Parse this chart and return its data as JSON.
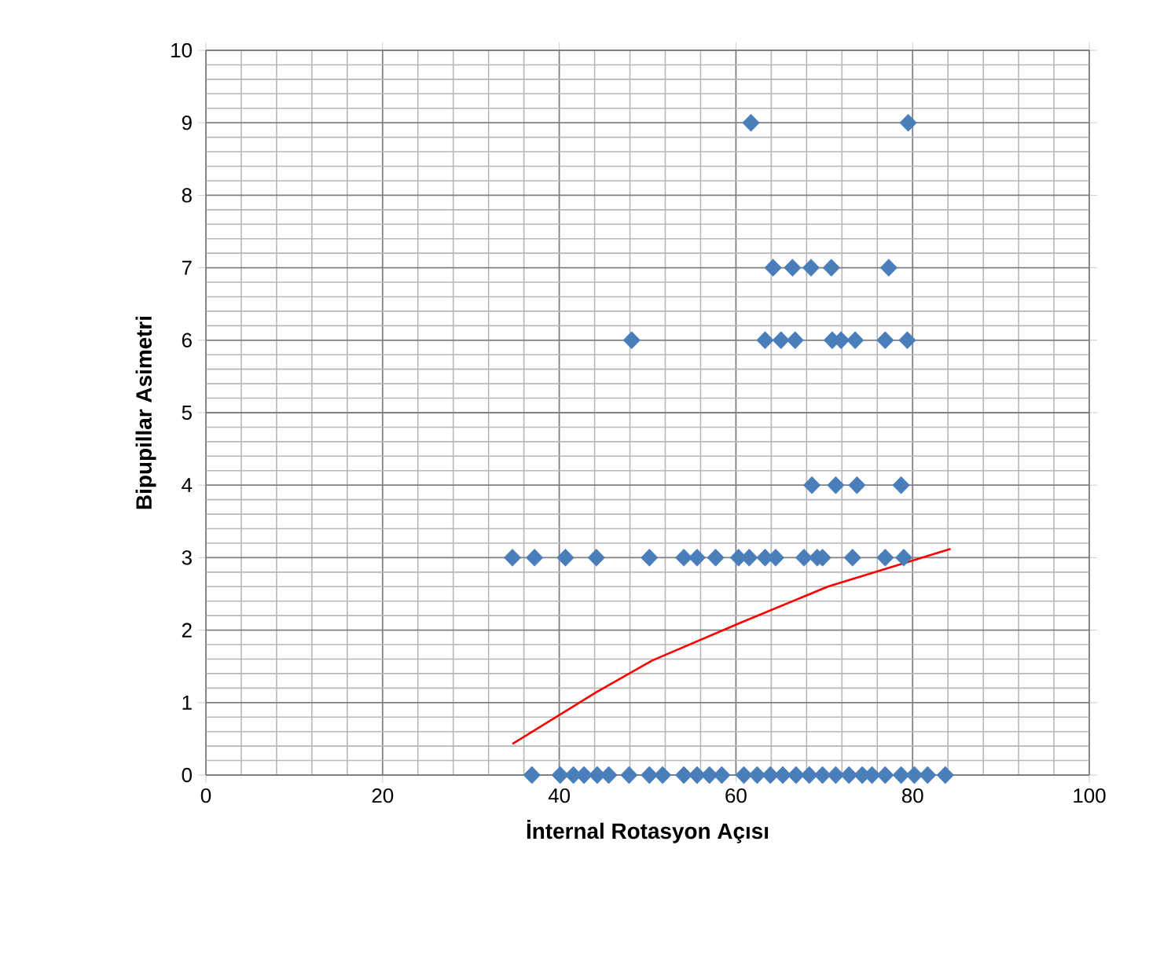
{
  "chart_data": {
    "type": "scatter",
    "xlabel": "İnternal Rotasyon Açısı",
    "ylabel": "Bipupillar  Asimetri",
    "xlim": [
      0,
      100
    ],
    "xticks": [
      0,
      20,
      40,
      60,
      80,
      100
    ],
    "ylim": [
      0,
      10
    ],
    "yticks": [
      0,
      1,
      2,
      3,
      4,
      5,
      6,
      7,
      8,
      9,
      10
    ],
    "grid": true,
    "marker": "diamond",
    "series": [
      {
        "color": "#4a7ebb",
        "x": [
          61.7,
          79.5,
          64.2,
          66.4,
          68.5,
          70.8,
          77.3,
          48.2,
          63.3,
          65.1,
          66.7,
          70.9,
          71.9,
          73.5,
          76.9,
          79.4,
          68.6,
          71.3,
          73.7,
          78.7,
          34.7,
          37.2,
          40.7,
          44.2,
          50.2,
          54.1,
          55.6,
          57.7,
          60.3,
          61.5,
          63.3,
          64.5,
          67.7,
          69.2,
          69.8,
          73.2,
          76.9,
          79.0,
          36.9,
          40.1,
          41.6,
          42.8,
          44.3,
          45.6,
          47.9,
          50.2,
          51.7,
          54.1,
          55.6,
          57.0,
          58.4,
          60.9,
          62.4,
          63.9,
          65.3,
          66.8,
          68.3,
          69.8,
          71.3,
          72.8,
          74.3,
          75.4,
          76.9,
          78.7,
          80.2,
          81.7,
          83.7
        ],
        "values": [
          9,
          9,
          7,
          7,
          7,
          7,
          7,
          6,
          6,
          6,
          6,
          6,
          6,
          6,
          6,
          6,
          4,
          4,
          4,
          4,
          3,
          3,
          3,
          3,
          3,
          3,
          3,
          3,
          3,
          3,
          3,
          3,
          3,
          3,
          3,
          3,
          3,
          3,
          0,
          0,
          0,
          0,
          0,
          0,
          0,
          0,
          0,
          0,
          0,
          0,
          0,
          0,
          0,
          0,
          0,
          0,
          0,
          0,
          0,
          0,
          0,
          0,
          0,
          0,
          0,
          0,
          0
        ]
      },
      {
        "type": "line",
        "color": "#ff0000",
        "marker": "none",
        "x": [
          34.7,
          44.3,
          50.5,
          60.3,
          70.4,
          84.3
        ],
        "values": [
          0.43,
          1.15,
          1.58,
          2.09,
          2.6,
          3.12
        ]
      }
    ]
  }
}
